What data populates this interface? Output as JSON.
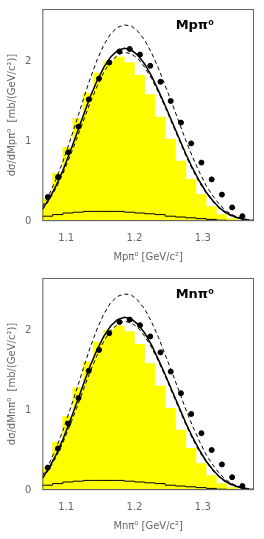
{
  "chart_data": [
    {
      "type": "histogram",
      "annotation": "Mpπ⁰",
      "xlabel": "Mpπ⁰ [GeV/c²]",
      "ylabel": "dσ/dMpπ⁰  [mb/(GeV/c²)]",
      "xlim": [
        1.065,
        1.375
      ],
      "ylim": [
        0,
        2.65
      ],
      "xticks": [
        1.1,
        1.2,
        1.3
      ],
      "yticks": [
        0,
        1,
        2
      ],
      "grid": false,
      "bins": [
        1.065,
        1.08,
        1.095,
        1.11,
        1.125,
        1.14,
        1.155,
        1.17,
        1.185,
        1.2,
        1.215,
        1.23,
        1.245,
        1.26,
        1.275,
        1.29,
        1.305,
        1.32,
        1.335,
        1.35,
        1.365
      ],
      "series": [
        {
          "type": "bar",
          "color": "#FFFF00",
          "values": [
            0.28,
            0.6,
            0.92,
            1.28,
            1.6,
            1.85,
            2.0,
            2.05,
            1.98,
            1.82,
            1.58,
            1.3,
            1.02,
            0.75,
            0.52,
            0.33,
            0.18,
            0.08,
            0.03,
            0.01
          ]
        },
        {
          "type": "step",
          "color": "#000000",
          "values": [
            0.04,
            0.06,
            0.08,
            0.1,
            0.11,
            0.12,
            0.12,
            0.12,
            0.12,
            0.11,
            0.1,
            0.09,
            0.08,
            0.06,
            0.05,
            0.04,
            0.03,
            0.02,
            0.01,
            0.005
          ]
        },
        {
          "type": "line",
          "color": "#000000",
          "line_style": "dashed",
          "x": [
            1.065,
            1.075,
            1.085,
            1.095,
            1.105,
            1.115,
            1.125,
            1.135,
            1.145,
            1.155,
            1.165,
            1.175,
            1.185,
            1.195,
            1.205,
            1.215,
            1.225,
            1.235,
            1.245,
            1.255,
            1.265,
            1.275,
            1.285,
            1.295,
            1.305,
            1.315,
            1.325,
            1.335,
            1.345,
            1.355,
            1.365,
            1.375
          ],
          "values": [
            0.18,
            0.33,
            0.52,
            0.74,
            0.99,
            1.25,
            1.52,
            1.78,
            2.01,
            2.2,
            2.34,
            2.42,
            2.45,
            2.44,
            2.37,
            2.26,
            2.1,
            1.91,
            1.69,
            1.47,
            1.24,
            1.01,
            0.8,
            0.61,
            0.44,
            0.31,
            0.2,
            0.12,
            0.07,
            0.04,
            0.02,
            0.01
          ]
        },
        {
          "type": "line",
          "color": "#000000",
          "line_style": "dashed",
          "x": [
            1.065,
            1.075,
            1.085,
            1.095,
            1.105,
            1.115,
            1.125,
            1.135,
            1.145,
            1.155,
            1.165,
            1.175,
            1.185,
            1.195,
            1.205,
            1.215,
            1.225,
            1.235,
            1.245,
            1.255,
            1.265,
            1.275,
            1.285,
            1.295,
            1.305,
            1.315,
            1.325,
            1.335,
            1.345,
            1.355,
            1.365,
            1.375
          ],
          "values": [
            0.14,
            0.26,
            0.41,
            0.59,
            0.8,
            1.02,
            1.25,
            1.48,
            1.68,
            1.86,
            1.99,
            2.07,
            2.11,
            2.09,
            2.03,
            1.92,
            1.78,
            1.61,
            1.42,
            1.22,
            1.02,
            0.82,
            0.64,
            0.48,
            0.35,
            0.24,
            0.15,
            0.09,
            0.05,
            0.03,
            0.01,
            0.005
          ]
        },
        {
          "type": "line",
          "color": "#000000",
          "line_style": "solid",
          "x": [
            1.065,
            1.075,
            1.085,
            1.095,
            1.105,
            1.115,
            1.125,
            1.135,
            1.145,
            1.155,
            1.165,
            1.175,
            1.185,
            1.195,
            1.205,
            1.215,
            1.225,
            1.235,
            1.245,
            1.255,
            1.265,
            1.275,
            1.285,
            1.295,
            1.305,
            1.315,
            1.325,
            1.335,
            1.345,
            1.355,
            1.365,
            1.375
          ],
          "values": [
            0.15,
            0.28,
            0.44,
            0.63,
            0.85,
            1.08,
            1.32,
            1.55,
            1.75,
            1.92,
            2.05,
            2.13,
            2.16,
            2.14,
            2.07,
            1.96,
            1.81,
            1.63,
            1.44,
            1.24,
            1.04,
            0.84,
            0.66,
            0.5,
            0.36,
            0.25,
            0.16,
            0.1,
            0.06,
            0.03,
            0.01,
            0.005
          ]
        },
        {
          "type": "scatter",
          "color": "#000000",
          "marker": "circle",
          "x": [
            1.073,
            1.088,
            1.103,
            1.118,
            1.133,
            1.148,
            1.163,
            1.178,
            1.193,
            1.208,
            1.223,
            1.238,
            1.253,
            1.268,
            1.283,
            1.298,
            1.313,
            1.328,
            1.343,
            1.358
          ],
          "values": [
            0.3,
            0.55,
            0.86,
            1.18,
            1.52,
            1.78,
            1.98,
            2.12,
            2.15,
            2.08,
            1.94,
            1.74,
            1.5,
            1.23,
            0.97,
            0.73,
            0.52,
            0.33,
            0.17,
            0.06
          ]
        }
      ]
    },
    {
      "type": "histogram",
      "annotation": "Mnπ⁰",
      "xlabel": "Mnπ⁰ [GeV/c²]",
      "ylabel": "dσ/dMnπ⁰  [mb/(GeV/c²)]",
      "xlim": [
        1.065,
        1.375
      ],
      "ylim": [
        0,
        2.65
      ],
      "xticks": [
        1.1,
        1.2,
        1.3
      ],
      "yticks": [
        0,
        1,
        2
      ],
      "grid": false,
      "bins": [
        1.065,
        1.08,
        1.095,
        1.11,
        1.125,
        1.14,
        1.155,
        1.17,
        1.185,
        1.2,
        1.215,
        1.23,
        1.245,
        1.26,
        1.275,
        1.29,
        1.305,
        1.32,
        1.335,
        1.35,
        1.365
      ],
      "series": [
        {
          "type": "bar",
          "color": "#FFFF00",
          "values": [
            0.28,
            0.6,
            0.92,
            1.28,
            1.6,
            1.85,
            2.0,
            2.05,
            1.98,
            1.82,
            1.58,
            1.3,
            1.02,
            0.75,
            0.52,
            0.33,
            0.18,
            0.08,
            0.03,
            0.01
          ]
        },
        {
          "type": "step",
          "color": "#000000",
          "values": [
            0.04,
            0.06,
            0.08,
            0.1,
            0.11,
            0.12,
            0.12,
            0.12,
            0.12,
            0.11,
            0.1,
            0.09,
            0.08,
            0.06,
            0.05,
            0.04,
            0.03,
            0.02,
            0.01,
            0.005
          ]
        },
        {
          "type": "line",
          "color": "#000000",
          "line_style": "dashed",
          "x": [
            1.065,
            1.075,
            1.085,
            1.095,
            1.105,
            1.115,
            1.125,
            1.135,
            1.145,
            1.155,
            1.165,
            1.175,
            1.185,
            1.195,
            1.205,
            1.215,
            1.225,
            1.235,
            1.245,
            1.255,
            1.265,
            1.275,
            1.285,
            1.295,
            1.305,
            1.315,
            1.325,
            1.335,
            1.345,
            1.355,
            1.365,
            1.375
          ],
          "values": [
            0.18,
            0.33,
            0.52,
            0.74,
            0.99,
            1.25,
            1.52,
            1.78,
            2.01,
            2.2,
            2.34,
            2.42,
            2.45,
            2.44,
            2.37,
            2.26,
            2.1,
            1.91,
            1.69,
            1.47,
            1.24,
            1.01,
            0.8,
            0.61,
            0.44,
            0.31,
            0.2,
            0.12,
            0.07,
            0.04,
            0.02,
            0.01
          ]
        },
        {
          "type": "line",
          "color": "#000000",
          "line_style": "dashed",
          "x": [
            1.065,
            1.075,
            1.085,
            1.095,
            1.105,
            1.115,
            1.125,
            1.135,
            1.145,
            1.155,
            1.165,
            1.175,
            1.185,
            1.195,
            1.205,
            1.215,
            1.225,
            1.235,
            1.245,
            1.255,
            1.265,
            1.275,
            1.285,
            1.295,
            1.305,
            1.315,
            1.325,
            1.335,
            1.345,
            1.355,
            1.365,
            1.375
          ],
          "values": [
            0.14,
            0.26,
            0.41,
            0.59,
            0.8,
            1.02,
            1.25,
            1.48,
            1.68,
            1.86,
            1.99,
            2.07,
            2.11,
            2.09,
            2.03,
            1.92,
            1.78,
            1.61,
            1.42,
            1.22,
            1.02,
            0.82,
            0.64,
            0.48,
            0.35,
            0.24,
            0.15,
            0.09,
            0.05,
            0.03,
            0.01,
            0.005
          ]
        },
        {
          "type": "line",
          "color": "#000000",
          "line_style": "solid",
          "x": [
            1.065,
            1.075,
            1.085,
            1.095,
            1.105,
            1.115,
            1.125,
            1.135,
            1.145,
            1.155,
            1.165,
            1.175,
            1.185,
            1.195,
            1.205,
            1.215,
            1.225,
            1.235,
            1.245,
            1.255,
            1.265,
            1.275,
            1.285,
            1.295,
            1.305,
            1.315,
            1.325,
            1.335,
            1.345,
            1.355,
            1.365,
            1.375
          ],
          "values": [
            0.15,
            0.28,
            0.44,
            0.63,
            0.85,
            1.08,
            1.32,
            1.55,
            1.75,
            1.92,
            2.05,
            2.13,
            2.16,
            2.14,
            2.07,
            1.96,
            1.81,
            1.63,
            1.44,
            1.24,
            1.04,
            0.84,
            0.66,
            0.5,
            0.36,
            0.25,
            0.16,
            0.1,
            0.06,
            0.03,
            0.01,
            0.005
          ]
        },
        {
          "type": "scatter",
          "color": "#000000",
          "marker": "circle",
          "x": [
            1.073,
            1.088,
            1.103,
            1.118,
            1.133,
            1.148,
            1.163,
            1.178,
            1.193,
            1.208,
            1.223,
            1.238,
            1.253,
            1.268,
            1.283,
            1.298,
            1.313,
            1.328,
            1.343,
            1.358
          ],
          "values": [
            0.28,
            0.52,
            0.83,
            1.15,
            1.49,
            1.75,
            1.96,
            2.1,
            2.13,
            2.06,
            1.92,
            1.72,
            1.48,
            1.21,
            0.95,
            0.71,
            0.5,
            0.32,
            0.16,
            0.05
          ]
        }
      ]
    }
  ]
}
